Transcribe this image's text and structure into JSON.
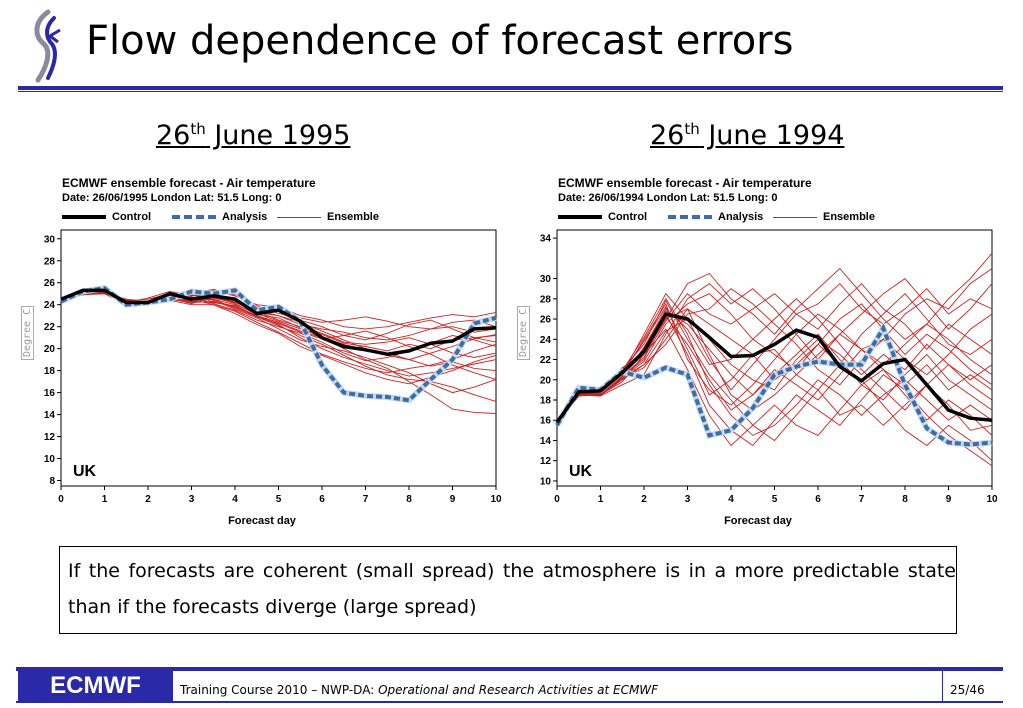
{
  "slide": {
    "title": "Flow dependence of forecast errors",
    "left_heading_day": "26",
    "left_heading_sup": "th",
    "left_heading_rest": " June 1995",
    "right_heading_day": "26",
    "right_heading_sup": "th",
    "right_heading_rest": " June 1994",
    "note": "If the forecasts are coherent (small spread) the atmosphere is in a more predictable state than if the forecasts diverge (large spread)",
    "footer_logo": "ECMWF",
    "footer_text_plain": "Training Course 2010 – NWP-DA: ",
    "footer_text_italic": "Operational and Research Activities at ECMWF",
    "page": "25/46"
  },
  "colors": {
    "accent": "#2a2aa8",
    "ensemble": "#cc2222",
    "analysis": "#3a6ea8",
    "control": "#000000"
  },
  "chart_data": [
    {
      "type": "line",
      "title": "ECMWF ensemble forecast -     Air temperature",
      "subtitle": "Date: 26/06/1995 London Lat: 51.5 Long: 0",
      "legend": [
        "Control",
        "Analysis",
        "Ensemble"
      ],
      "xlabel": "Forecast day",
      "ylabel": "Degree C",
      "region_label": "UK",
      "xlim": [
        0,
        10
      ],
      "ylim": [
        7.5,
        30.8
      ],
      "yticks": [
        8,
        10,
        12,
        14,
        16,
        18,
        20,
        22,
        24,
        26,
        28,
        30
      ],
      "xticks": [
        0,
        1,
        2,
        3,
        4,
        5,
        6,
        7,
        8,
        9,
        10
      ],
      "x": [
        0,
        0.5,
        1,
        1.5,
        2,
        2.5,
        3,
        3.5,
        4,
        4.5,
        5,
        5.5,
        6,
        6.5,
        7,
        7.5,
        8,
        8.5,
        9,
        9.5,
        10
      ],
      "series": [
        {
          "name": "Control",
          "values": [
            24.5,
            25.3,
            25.3,
            24.2,
            24.2,
            25.0,
            24.5,
            24.8,
            24.5,
            23.2,
            23.5,
            22.5,
            21.0,
            20.2,
            19.9,
            19.5,
            19.8,
            20.5,
            20.7,
            21.8,
            21.9
          ]
        },
        {
          "name": "Analysis",
          "values": [
            24.3,
            25.2,
            25.5,
            24.0,
            24.2,
            24.5,
            25.2,
            25.0,
            25.3,
            23.5,
            23.8,
            22.5,
            18.5,
            16.0,
            15.7,
            15.6,
            15.3,
            17.2,
            19.0,
            22.3,
            22.8
          ]
        }
      ],
      "ensemble": [
        [
          24.4,
          25.0,
          25.1,
          24.5,
          24.3,
          24.6,
          24.3,
          24.5,
          24.0,
          23.2,
          22.5,
          21.8,
          21.3,
          20.5,
          20.2,
          19.8,
          20.4,
          20.0,
          20.8,
          21.0,
          21.2
        ],
        [
          24.4,
          25.2,
          25.0,
          24.2,
          24.6,
          25.2,
          24.8,
          25.3,
          24.8,
          24.0,
          23.8,
          23.0,
          22.6,
          22.0,
          21.8,
          22.0,
          22.4,
          22.8,
          23.1,
          22.9,
          23.3
        ],
        [
          24.4,
          25.1,
          25.3,
          24.1,
          24.0,
          24.8,
          25.1,
          24.2,
          23.9,
          23.0,
          22.2,
          21.0,
          20.0,
          19.2,
          18.6,
          18.0,
          17.5,
          17.8,
          18.2,
          18.6,
          19.0
        ],
        [
          24.4,
          24.9,
          25.0,
          24.4,
          24.4,
          24.4,
          24.0,
          24.0,
          23.4,
          22.4,
          21.5,
          20.5,
          19.5,
          18.8,
          18.2,
          17.8,
          18.2,
          18.5,
          19.0,
          19.8,
          20.4
        ],
        [
          24.4,
          25.0,
          25.2,
          24.3,
          24.2,
          24.9,
          24.6,
          24.8,
          24.2,
          23.5,
          23.0,
          22.2,
          21.8,
          21.5,
          21.0,
          20.8,
          21.2,
          21.8,
          22.0,
          21.5,
          21.8
        ],
        [
          24.4,
          25.1,
          25.1,
          24.2,
          24.5,
          25.0,
          24.9,
          24.4,
          23.6,
          22.8,
          21.8,
          20.8,
          20.2,
          19.8,
          19.2,
          18.5,
          17.8,
          16.8,
          16.0,
          16.5,
          17.2
        ],
        [
          24.4,
          25.0,
          25.0,
          24.0,
          24.1,
          24.5,
          24.2,
          24.3,
          23.8,
          23.0,
          22.4,
          21.6,
          21.0,
          20.0,
          19.0,
          18.2,
          17.0,
          15.8,
          14.5,
          14.2,
          14.1
        ],
        [
          24.4,
          25.2,
          25.3,
          24.4,
          24.3,
          25.1,
          25.0,
          25.4,
          24.9,
          23.9,
          23.2,
          22.8,
          22.4,
          22.6,
          22.9,
          22.5,
          22.0,
          21.8,
          22.4,
          22.6,
          22.0
        ],
        [
          24.4,
          25.0,
          25.0,
          24.3,
          24.1,
          24.4,
          24.4,
          24.6,
          24.2,
          23.4,
          22.6,
          22.0,
          21.4,
          20.6,
          20.4,
          20.6,
          21.0,
          20.4,
          19.6,
          19.2,
          19.6
        ],
        [
          24.4,
          25.1,
          25.2,
          24.2,
          24.4,
          24.7,
          24.7,
          24.1,
          23.5,
          22.6,
          22.0,
          21.4,
          20.6,
          19.6,
          18.9,
          19.2,
          19.8,
          20.5,
          21.2,
          20.8,
          20.2
        ],
        [
          24.4,
          24.9,
          25.1,
          24.5,
          24.2,
          24.6,
          24.1,
          24.7,
          24.1,
          23.1,
          22.8,
          21.9,
          21.0,
          20.4,
          19.8,
          19.6,
          19.0,
          18.4,
          18.8,
          18.2,
          18.0
        ],
        [
          24.4,
          25.0,
          25.2,
          24.1,
          24.3,
          24.8,
          24.6,
          24.5,
          23.7,
          22.9,
          22.3,
          21.5,
          20.9,
          21.2,
          21.6,
          21.0,
          20.2,
          19.5,
          18.5,
          17.8,
          17.2
        ],
        [
          24.4,
          25.1,
          25.0,
          24.3,
          24.5,
          24.9,
          24.8,
          24.9,
          24.4,
          23.6,
          23.4,
          22.6,
          22.0,
          21.2,
          20.8,
          21.4,
          22.2,
          22.6,
          21.8,
          21.0,
          20.6
        ],
        [
          24.4,
          25.0,
          25.1,
          24.2,
          24.2,
          24.5,
          24.3,
          24.2,
          23.9,
          22.9,
          22.1,
          21.2,
          20.4,
          19.4,
          18.4,
          17.6,
          17.2,
          17.0,
          16.5,
          15.8,
          15.2
        ],
        [
          24.4,
          25.2,
          25.2,
          24.4,
          24.4,
          24.8,
          24.9,
          24.6,
          24.3,
          23.3,
          23.0,
          22.4,
          21.6,
          20.8,
          20.0,
          19.4,
          19.0,
          19.6,
          20.2,
          20.9,
          21.3
        ],
        [
          24.4,
          25.0,
          25.0,
          24.2,
          24.0,
          24.4,
          24.5,
          24.0,
          23.2,
          22.2,
          21.4,
          20.2,
          19.4,
          18.6,
          17.8,
          17.2,
          16.8,
          17.4,
          18.0,
          18.8,
          19.4
        ]
      ]
    },
    {
      "type": "line",
      "title": "ECMWF ensemble forecast -     Air temperature",
      "subtitle": "Date: 26/06/1994 London Lat: 51.5 Long: 0",
      "legend": [
        "Control",
        "Analysis",
        "Ensemble"
      ],
      "xlabel": "Forecast day",
      "ylabel": "Degree C",
      "region_label": "UK",
      "xlim": [
        0,
        10
      ],
      "ylim": [
        9.5,
        34.8
      ],
      "yticks": [
        10,
        12,
        14,
        16,
        18,
        20,
        22,
        24,
        26,
        28,
        30,
        34
      ],
      "xticks": [
        0,
        1,
        2,
        3,
        4,
        5,
        6,
        7,
        8,
        9,
        10
      ],
      "x": [
        0,
        0.5,
        1,
        1.5,
        2,
        2.5,
        3,
        3.5,
        4,
        4.5,
        5,
        5.5,
        6,
        6.5,
        7,
        7.5,
        8,
        8.5,
        9,
        9.5,
        10
      ],
      "series": [
        {
          "name": "Control",
          "values": [
            15.8,
            18.8,
            18.9,
            20.7,
            22.8,
            26.5,
            26.0,
            24.2,
            22.3,
            22.4,
            23.5,
            24.9,
            24.2,
            21.3,
            19.9,
            21.6,
            22.0,
            19.5,
            17.0,
            16.2,
            16.0
          ]
        },
        {
          "name": "Analysis",
          "values": [
            15.5,
            19.2,
            19.0,
            20.8,
            20.2,
            21.2,
            20.5,
            14.5,
            15.0,
            17.2,
            20.5,
            21.3,
            21.8,
            21.5,
            21.5,
            25.1,
            19.5,
            15.2,
            13.8,
            13.6,
            13.8
          ]
        }
      ],
      "ensemble": [
        [
          15.8,
          18.5,
          18.4,
          20.5,
          24.0,
          27.5,
          22.0,
          19.0,
          17.5,
          19.5,
          22.0,
          24.5,
          26.5,
          25.0,
          23.0,
          24.0,
          26.5,
          28.0,
          27.0,
          29.5,
          31.0
        ],
        [
          15.8,
          18.6,
          18.5,
          19.8,
          22.5,
          26.0,
          29.5,
          30.5,
          28.0,
          26.5,
          24.5,
          27.0,
          29.0,
          31.0,
          28.5,
          26.0,
          24.0,
          25.5,
          28.0,
          30.0,
          32.5
        ],
        [
          15.8,
          18.4,
          18.6,
          21.0,
          23.5,
          27.8,
          24.0,
          20.5,
          18.0,
          15.5,
          14.0,
          16.5,
          19.0,
          21.5,
          20.0,
          17.5,
          15.0,
          13.5,
          15.5,
          14.0,
          12.0
        ],
        [
          15.8,
          18.7,
          18.5,
          20.2,
          21.8,
          25.5,
          27.5,
          28.5,
          26.5,
          24.0,
          22.5,
          21.0,
          23.5,
          26.0,
          27.5,
          25.0,
          22.5,
          24.5,
          23.0,
          21.0,
          19.5
        ],
        [
          15.8,
          18.5,
          18.7,
          20.8,
          23.0,
          26.5,
          22.5,
          17.5,
          15.0,
          13.5,
          16.0,
          18.5,
          17.0,
          15.5,
          18.0,
          20.5,
          19.0,
          16.5,
          14.5,
          13.0,
          11.5
        ],
        [
          15.8,
          18.6,
          18.4,
          19.5,
          20.5,
          24.5,
          28.0,
          29.5,
          27.5,
          29.0,
          27.0,
          24.5,
          22.0,
          24.5,
          26.5,
          28.5,
          30.0,
          27.5,
          25.0,
          27.0,
          29.5
        ],
        [
          15.8,
          18.5,
          18.6,
          20.4,
          22.0,
          26.8,
          25.5,
          23.0,
          20.5,
          18.5,
          20.5,
          22.5,
          24.5,
          22.0,
          19.5,
          18.0,
          20.5,
          22.5,
          20.0,
          18.5,
          17.0
        ],
        [
          15.8,
          18.7,
          18.5,
          20.6,
          24.5,
          28.5,
          26.0,
          22.0,
          19.0,
          21.5,
          24.0,
          26.5,
          25.0,
          27.5,
          29.5,
          27.0,
          25.5,
          23.0,
          25.5,
          24.0,
          22.5
        ],
        [
          15.8,
          18.4,
          18.7,
          21.2,
          22.5,
          25.0,
          21.0,
          16.5,
          13.5,
          15.5,
          17.5,
          15.5,
          14.5,
          17.0,
          19.5,
          21.0,
          18.5,
          16.0,
          18.0,
          16.5,
          14.5
        ],
        [
          15.8,
          18.6,
          18.5,
          20.0,
          21.5,
          23.5,
          26.5,
          27.0,
          29.0,
          27.5,
          25.5,
          23.5,
          21.0,
          19.5,
          22.0,
          24.0,
          22.0,
          20.5,
          22.5,
          25.0,
          26.5
        ],
        [
          15.8,
          18.5,
          18.6,
          20.3,
          23.2,
          27.0,
          25.0,
          21.5,
          22.0,
          24.0,
          26.0,
          28.0,
          26.0,
          23.5,
          21.0,
          19.0,
          17.0,
          19.5,
          21.5,
          19.5,
          18.0
        ],
        [
          15.8,
          18.6,
          18.4,
          20.7,
          22.8,
          26.2,
          23.5,
          20.0,
          17.0,
          18.5,
          21.0,
          19.5,
          18.0,
          20.5,
          23.0,
          21.5,
          23.5,
          25.5,
          24.0,
          22.0,
          20.5
        ],
        [
          15.8,
          18.5,
          18.5,
          20.1,
          21.2,
          24.0,
          27.0,
          25.5,
          24.0,
          22.5,
          20.0,
          21.5,
          23.5,
          21.5,
          24.5,
          26.5,
          28.5,
          26.0,
          23.5,
          22.5,
          24.0
        ],
        [
          15.8,
          18.7,
          18.6,
          20.9,
          24.2,
          28.0,
          24.5,
          19.5,
          16.5,
          14.5,
          15.5,
          17.5,
          20.0,
          18.5,
          16.5,
          18.5,
          20.0,
          18.0,
          16.0,
          17.5,
          16.0
        ],
        [
          15.8,
          18.5,
          18.4,
          20.4,
          22.2,
          25.8,
          28.5,
          26.5,
          25.5,
          27.0,
          28.5,
          26.5,
          27.5,
          29.5,
          27.0,
          25.5,
          27.0,
          29.0,
          26.5,
          28.0,
          27.0
        ],
        [
          15.8,
          18.6,
          18.7,
          20.6,
          23.8,
          27.2,
          23.0,
          18.5,
          20.0,
          22.5,
          23.0,
          20.5,
          19.0,
          16.5,
          17.5,
          15.5,
          17.5,
          19.5,
          17.5,
          15.0,
          15.5
        ],
        [
          15.8,
          18.4,
          18.5,
          20.2,
          21.5,
          24.8,
          26.0,
          24.0,
          21.5,
          20.0,
          19.0,
          22.0,
          24.0,
          22.5,
          20.5,
          22.5,
          21.0,
          23.5,
          21.5,
          20.0,
          21.5
        ],
        [
          15.8,
          18.6,
          18.6,
          20.5,
          22.5,
          26.0,
          27.0,
          22.5,
          18.5,
          17.0,
          18.5,
          20.5,
          22.5,
          24.5,
          23.0,
          21.0,
          19.5,
          21.5,
          19.0,
          20.5,
          19.0
        ]
      ]
    }
  ]
}
